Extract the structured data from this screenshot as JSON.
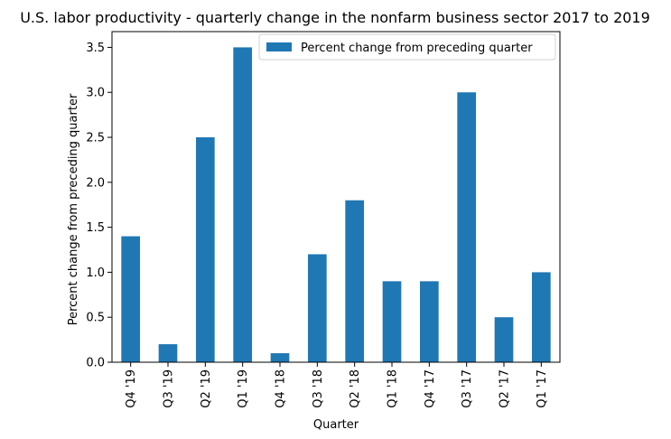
{
  "chart_data": {
    "type": "bar",
    "title": "U.S. labor productivity - quarterly change in the nonfarm business sector 2017 to 2019",
    "xlabel": "Quarter",
    "ylabel": "Percent change from preceding quarter",
    "categories": [
      "Q4 '19",
      "Q3 '19",
      "Q2 '19",
      "Q1 '19",
      "Q4 '18",
      "Q3 '18",
      "Q2 '18",
      "Q1 '18",
      "Q4 '17",
      "Q3 '17",
      "Q2 '17",
      "Q1 '17"
    ],
    "series": [
      {
        "name": "Percent change from preceding quarter",
        "values": [
          1.4,
          0.2,
          2.5,
          3.5,
          0.1,
          1.2,
          1.8,
          0.9,
          0.9,
          3.0,
          0.5,
          1.0
        ],
        "color": "#1f77b4"
      }
    ],
    "ylim": [
      0,
      3.675
    ],
    "yticks": [
      "0.0",
      "0.5",
      "1.0",
      "1.5",
      "2.0",
      "2.5",
      "3.0",
      "3.5"
    ],
    "grid": false,
    "legend_position": "top-right"
  }
}
